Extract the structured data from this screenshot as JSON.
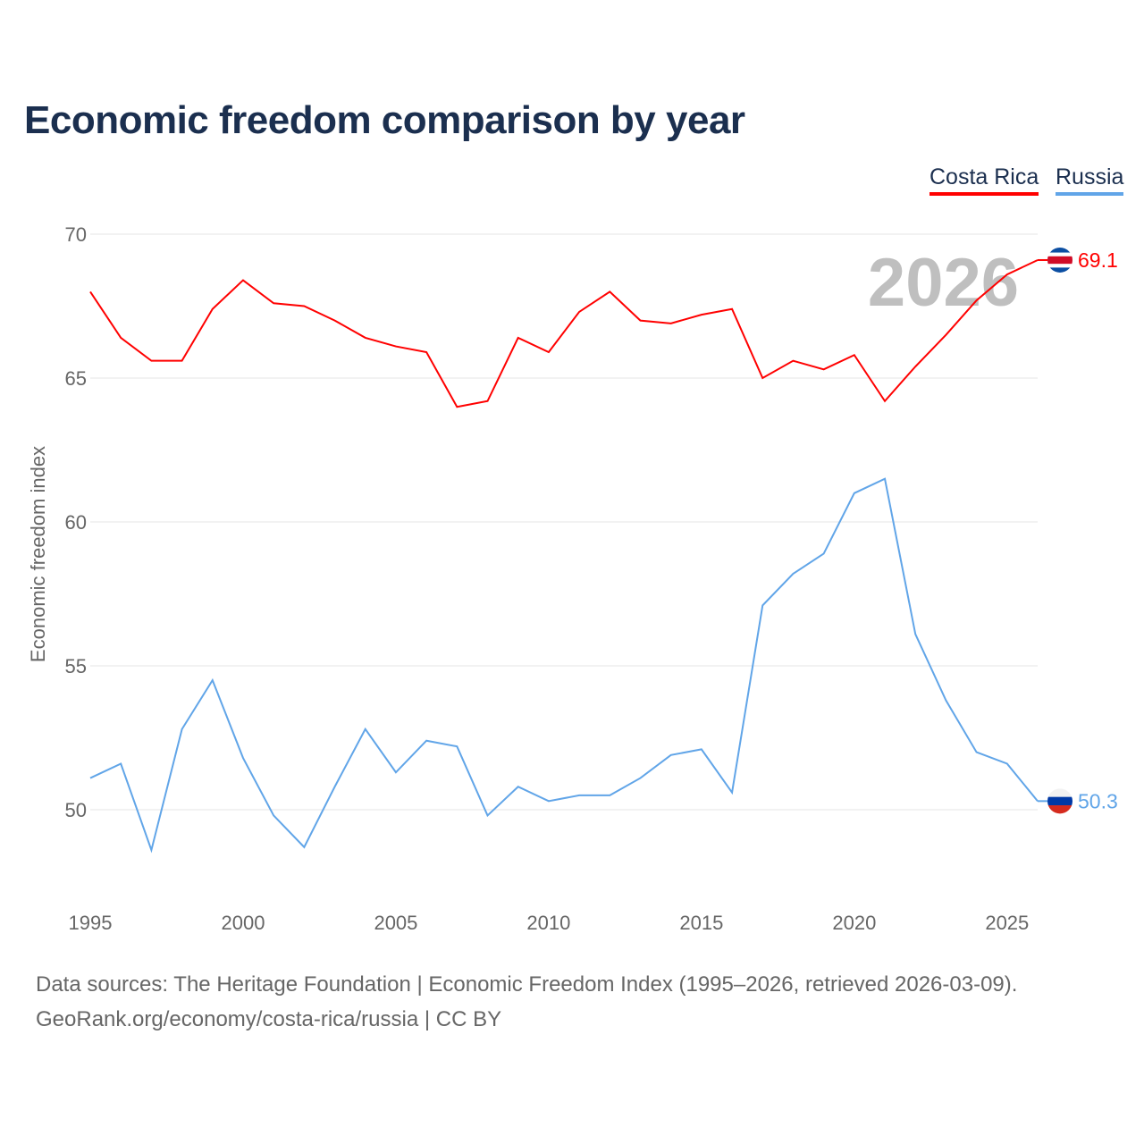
{
  "title": "Economic freedom comparison by year",
  "legend": [
    {
      "name": "Costa Rica",
      "color": "#ff0000"
    },
    {
      "name": "Russia",
      "color": "#61a5e8"
    }
  ],
  "footer": {
    "line1": "Data sources: The Heritage Foundation | Economic Freedom Index (1995–2026, retrieved 2026-03-09).",
    "line2": "GeoRank.org/economy/costa-rica/russia | CC BY"
  },
  "chart_data": {
    "type": "line",
    "title": "Economic freedom comparison by year",
    "xlabel": "",
    "ylabel": "Economic freedom index",
    "year_watermark": "2026",
    "xlim": [
      1995,
      2026
    ],
    "ylim": [
      47,
      70
    ],
    "yticks": [
      50,
      55,
      60,
      65,
      70
    ],
    "xticks": [
      1995,
      2000,
      2005,
      2010,
      2015,
      2020,
      2025
    ],
    "grid": true,
    "legend_position": "top-right",
    "x": [
      1995,
      1996,
      1997,
      1998,
      1999,
      2000,
      2001,
      2002,
      2003,
      2004,
      2005,
      2006,
      2007,
      2008,
      2009,
      2010,
      2011,
      2012,
      2013,
      2014,
      2015,
      2016,
      2017,
      2018,
      2019,
      2020,
      2021,
      2022,
      2023,
      2024,
      2025,
      2026
    ],
    "series": [
      {
        "name": "Costa Rica",
        "color": "#ff0000",
        "end_label": "69.1",
        "values": [
          68.0,
          66.4,
          65.6,
          65.6,
          67.4,
          68.4,
          67.6,
          67.5,
          67.0,
          66.4,
          66.1,
          65.9,
          64.0,
          64.2,
          66.4,
          65.9,
          67.3,
          68.0,
          67.0,
          66.9,
          67.2,
          67.4,
          65.0,
          65.6,
          65.3,
          65.8,
          64.2,
          65.4,
          66.5,
          67.7,
          68.6,
          69.1
        ]
      },
      {
        "name": "Russia",
        "color": "#61a5e8",
        "end_label": "50.3",
        "values": [
          51.1,
          51.6,
          48.6,
          52.8,
          54.5,
          51.8,
          49.8,
          48.7,
          50.8,
          52.8,
          51.3,
          52.4,
          52.2,
          49.8,
          50.8,
          50.3,
          50.5,
          50.5,
          51.1,
          51.9,
          52.1,
          50.6,
          57.1,
          58.2,
          58.9,
          61.0,
          61.5,
          56.1,
          53.8,
          52.0,
          51.6,
          50.3
        ]
      }
    ]
  }
}
